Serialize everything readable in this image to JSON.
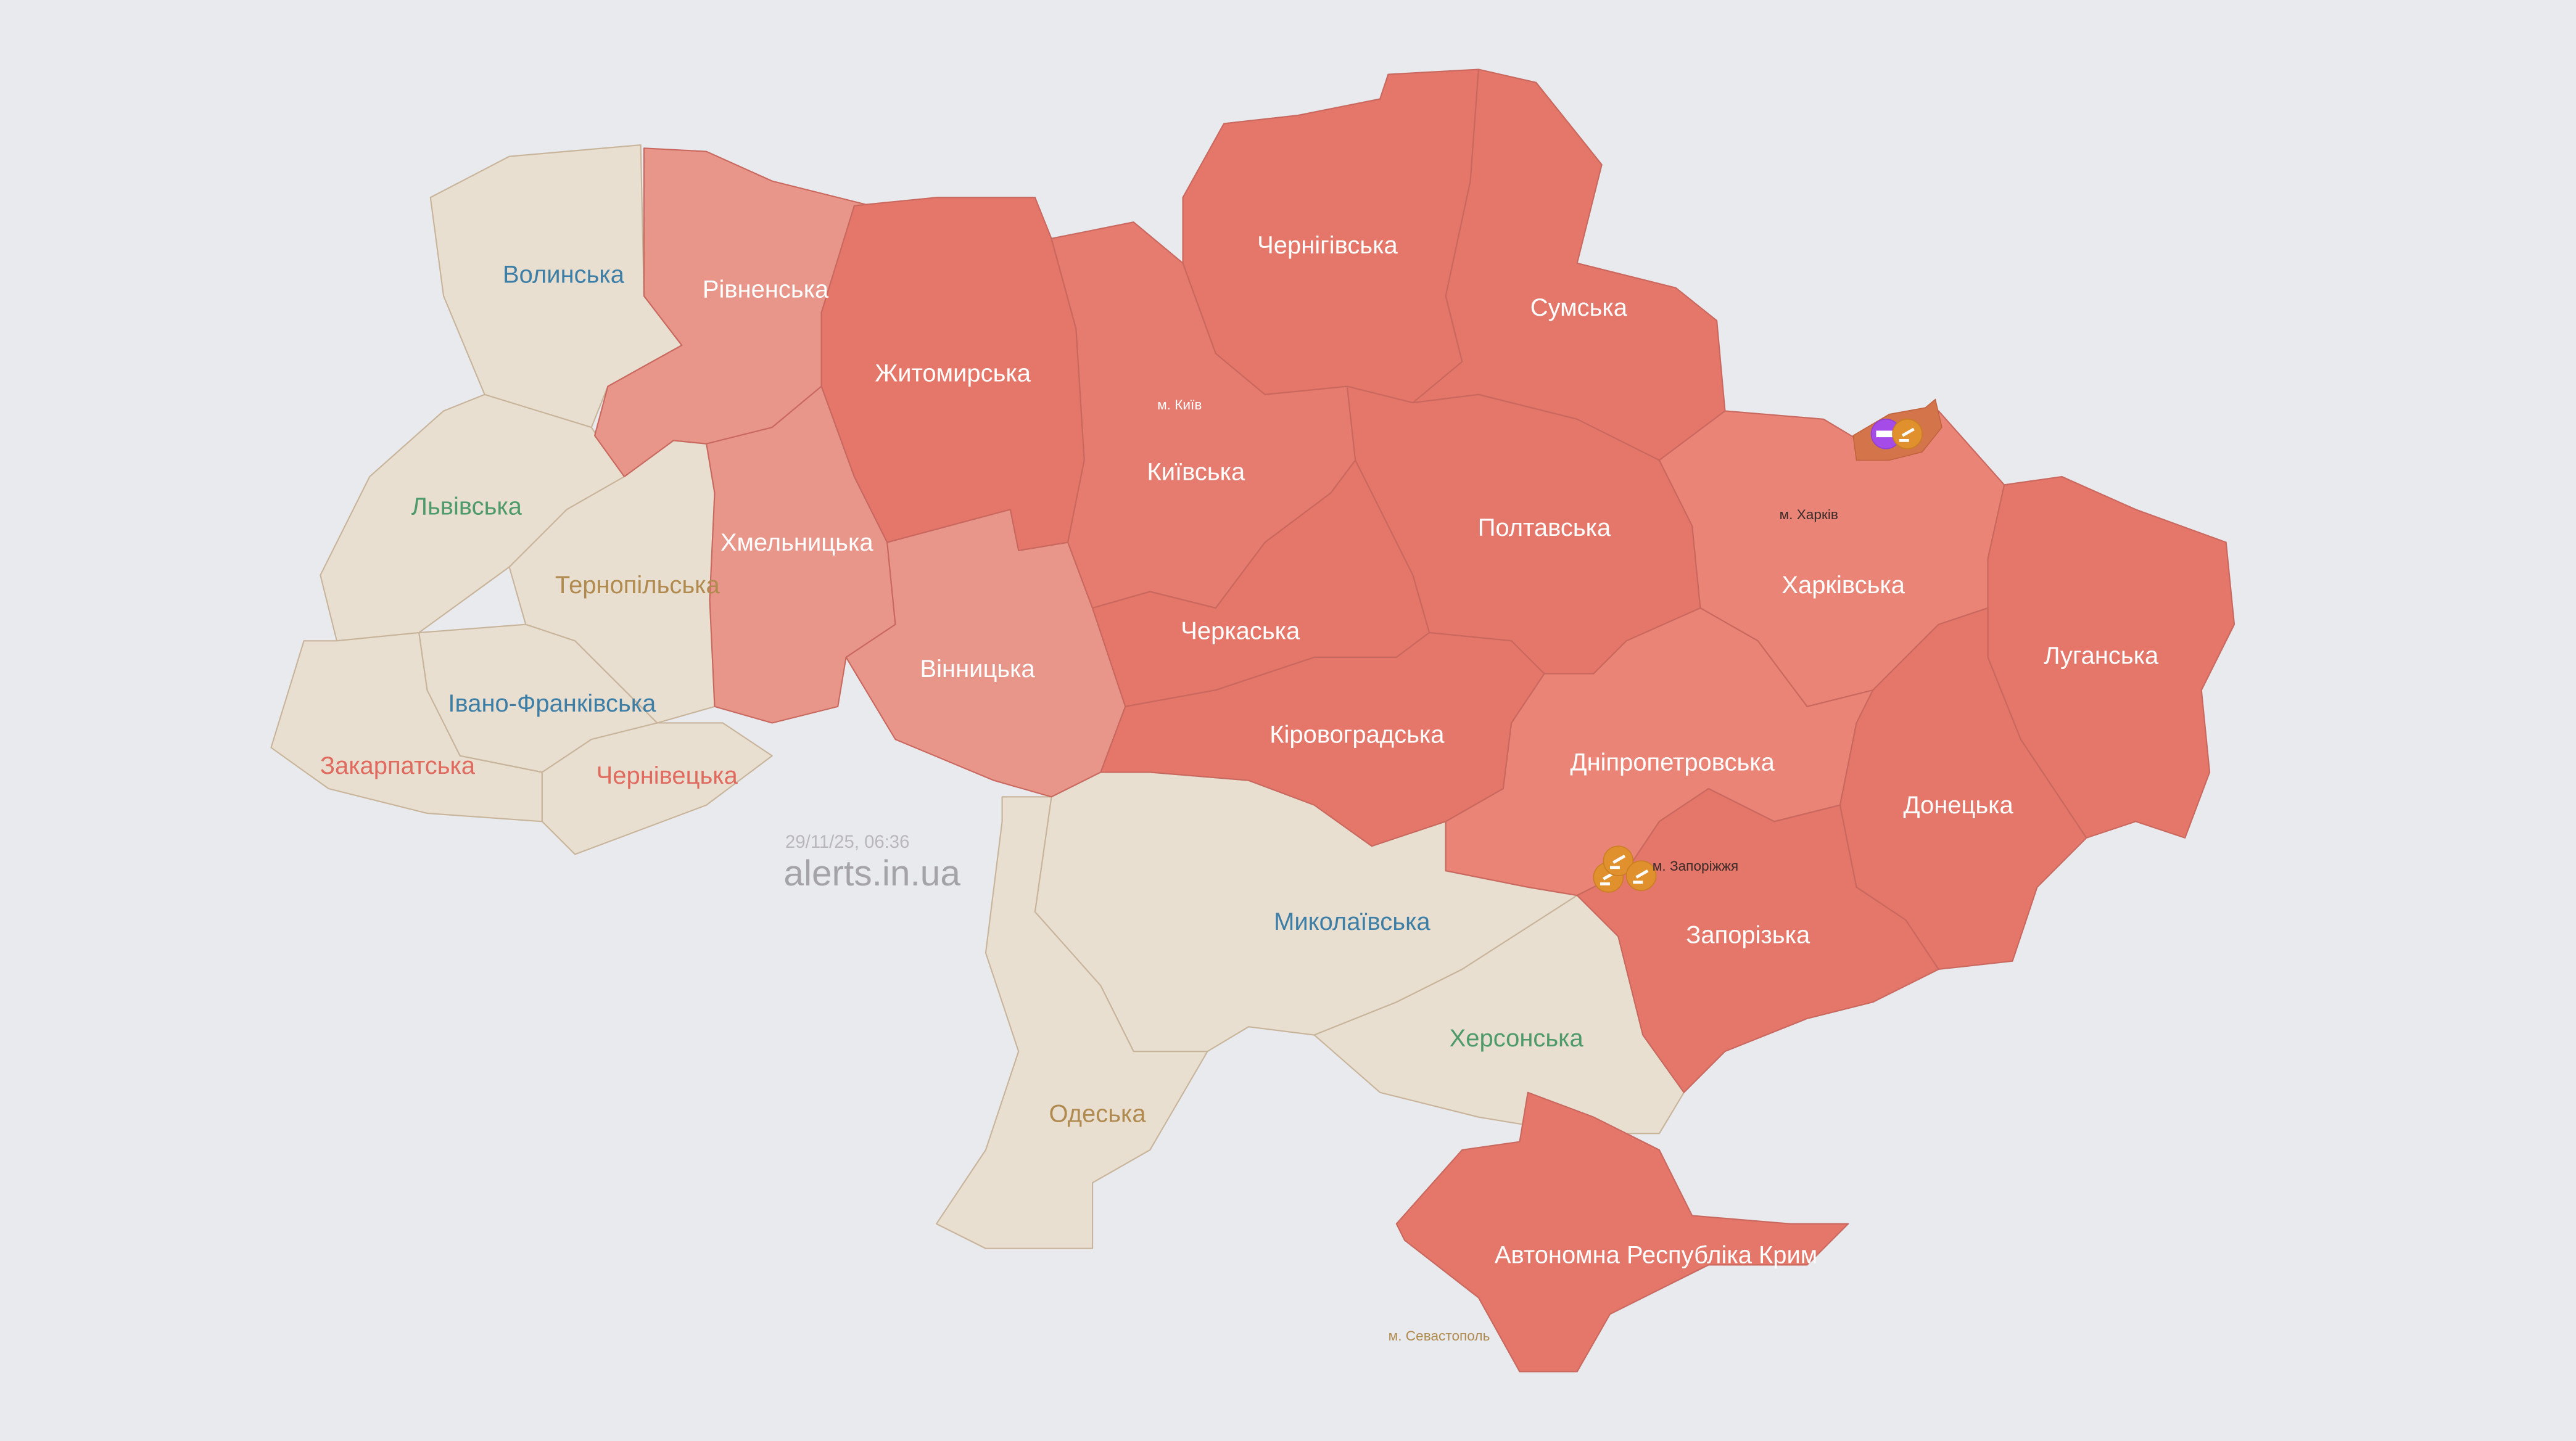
{
  "timestamp": "29/11/25, 06:36",
  "site": "alerts.in.ua",
  "colors": {
    "background": "#e9eaee",
    "no_alert": "#e8dfd1",
    "alert": "#e5766a",
    "alert_light": "#e8958a",
    "alert_medium": "#e98477",
    "frontline_zone": "#d4744a",
    "tank_marker": "#a54ce8",
    "artillery_marker": "#e0902c",
    "label_blue": "#3d7ea6",
    "label_green": "#4e9a6a",
    "label_brown": "#b08a4e",
    "label_red": "#e06a5e"
  },
  "regions": {
    "volyn": {
      "label": "Волинська",
      "status": "no-alert"
    },
    "rivne": {
      "label": "Рівненська",
      "status": "alert"
    },
    "lviv": {
      "label": "Львівська",
      "status": "no-alert"
    },
    "ternopil": {
      "label": "Тернопільська",
      "status": "no-alert"
    },
    "ivano_frankivsk": {
      "label": "Івано-Франківська",
      "status": "no-alert"
    },
    "zakarpattia": {
      "label": "Закарпатська",
      "status": "no-alert"
    },
    "chernivtsi": {
      "label": "Чернівецька",
      "status": "no-alert"
    },
    "khmelnytskyi": {
      "label": "Хмельницька",
      "status": "alert"
    },
    "zhytomyr": {
      "label": "Житомирська",
      "status": "alert"
    },
    "vinnytsia": {
      "label": "Вінницька",
      "status": "alert"
    },
    "kyiv": {
      "label": "Київська",
      "status": "alert"
    },
    "kyiv_city": {
      "label": "м. Київ",
      "status": "alert"
    },
    "chernihiv": {
      "label": "Чернігівська",
      "status": "alert"
    },
    "sumy": {
      "label": "Сумська",
      "status": "alert"
    },
    "poltava": {
      "label": "Полтавська",
      "status": "alert"
    },
    "cherkasy": {
      "label": "Черкаська",
      "status": "alert"
    },
    "kirovohrad": {
      "label": "Кіровоградська",
      "status": "alert"
    },
    "kharkiv": {
      "label": "Харківська",
      "status": "alert"
    },
    "kharkiv_city": {
      "label": "м. Харків",
      "status": "alert"
    },
    "luhansk": {
      "label": "Луганська",
      "status": "alert"
    },
    "donetsk": {
      "label": "Донецька",
      "status": "alert"
    },
    "dnipro": {
      "label": "Дніпропетровська",
      "status": "alert"
    },
    "zaporizhzhia": {
      "label": "Запорізька",
      "status": "alert"
    },
    "zaporizhzhia_city": {
      "label": "м. Запоріжжя",
      "status": "alert"
    },
    "mykolaiv": {
      "label": "Миколаївська",
      "status": "no-alert"
    },
    "kherson": {
      "label": "Херсонська",
      "status": "no-alert"
    },
    "odesa": {
      "label": "Одеська",
      "status": "no-alert"
    },
    "crimea": {
      "label": "Автономна Республіка Крим",
      "status": "alert"
    },
    "sevastopol": {
      "label": "м. Севастополь",
      "status": "no-alert"
    }
  },
  "markers": [
    {
      "type": "tank-icon",
      "near": "Харківська"
    },
    {
      "type": "artillery-icon",
      "near": "Харківська"
    },
    {
      "type": "artillery-icon",
      "near": "м. Запоріжжя"
    },
    {
      "type": "artillery-icon",
      "near": "м. Запоріжжя"
    },
    {
      "type": "artillery-icon",
      "near": "м. Запоріжжя"
    }
  ]
}
